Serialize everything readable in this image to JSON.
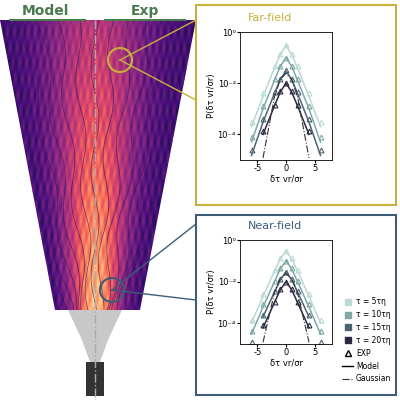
{
  "panel_labels": {
    "left": "Model",
    "right": "Exp"
  },
  "legend_entries": {
    "exp": {
      "name": "EXP",
      "marker": "triangle"
    },
    "model": {
      "name": "Model",
      "line_style": "solid"
    }
  },
  "chart_data": [
    {
      "type": "line",
      "title": "Far-field",
      "frame_color": "#c9b03c",
      "xlabel": "δτ vr/σr",
      "ylabel": "P(δτ vr/σr)",
      "log": "y",
      "xlim": [
        -8,
        8
      ],
      "ylim": [
        1e-05,
        1
      ],
      "xticks": [
        -5,
        0,
        5
      ],
      "yticks": [
        {
          "value": 1,
          "label": "10⁰"
        },
        {
          "value": 0.01,
          "label": "10⁻²"
        },
        {
          "value": 0.0001,
          "label": "10⁻⁴"
        }
      ],
      "x": [
        -6,
        -4,
        -2,
        -1,
        0,
        1,
        2,
        4,
        6
      ],
      "series": [
        {
          "name": "τ = 5τη",
          "color": "#b9d9d6",
          "exp": [
            0.0003,
            0.004,
            0.045,
            0.14,
            0.32,
            0.14,
            0.045,
            0.004,
            0.0003
          ],
          "model": [
            0.0002,
            0.003,
            0.04,
            0.13,
            0.3,
            0.13,
            0.04,
            0.003,
            0.0002
          ]
        },
        {
          "name": "τ = 10τη",
          "color": "#7fa7a8",
          "exp": [
            8e-05,
            0.0013,
            0.014,
            0.048,
            0.1,
            0.048,
            0.014,
            0.0013,
            8e-05
          ],
          "model": [
            5e-05,
            0.001,
            0.013,
            0.045,
            0.1,
            0.045,
            0.013,
            0.001,
            5e-05
          ]
        },
        {
          "name": "τ = 15τη",
          "color": "#4b6474",
          "exp": [
            2.5e-05,
            0.0004,
            0.0045,
            0.015,
            0.032,
            0.015,
            0.0045,
            0.0004,
            2.5e-05
          ],
          "model": [
            1.5e-05,
            0.0003,
            0.004,
            0.014,
            0.03,
            0.014,
            0.004,
            0.0003,
            1.5e-05
          ]
        },
        {
          "name": "τ = 20τη",
          "color": "#2b2942",
          "exp": [
            null,
            0.00013,
            0.0014,
            0.0048,
            0.01,
            0.0048,
            0.0014,
            0.00013,
            null
          ],
          "model": [
            null,
            0.0001,
            0.0013,
            0.0045,
            0.01,
            0.0045,
            0.0013,
            0.0001,
            null
          ]
        }
      ],
      "gaussian": {
        "name": "Gaussian",
        "color": "#333333",
        "line_style": "dashdot",
        "values": [
          null,
          1.2e-05,
          0.003,
          0.014,
          0.024,
          0.014,
          0.003,
          1.2e-05,
          null
        ]
      }
    },
    {
      "type": "line",
      "title": "Near-field",
      "frame_color": "#3d5d7a",
      "xlabel": "δτ vr/σr",
      "ylabel": "P(δτ vr/σr)",
      "log": "y",
      "xlim": [
        -8,
        8
      ],
      "ylim": [
        1e-05,
        1
      ],
      "xticks": [
        -5,
        0,
        5
      ],
      "yticks": [
        {
          "value": 1,
          "label": "10⁰"
        },
        {
          "value": 0.01,
          "label": "10⁻²"
        },
        {
          "value": 0.0001,
          "label": "10⁻⁴"
        }
      ],
      "x": [
        -6,
        -4,
        -2,
        -1,
        0,
        1,
        2,
        4,
        6
      ],
      "series": [
        {
          "name": "τ = 5τη",
          "color": "#b9d9d6",
          "exp": [
            0.00015,
            0.0025,
            0.035,
            0.13,
            0.3,
            0.13,
            0.035,
            0.0025,
            0.00015
          ],
          "model": [
            0.0001,
            0.002,
            0.032,
            0.12,
            0.3,
            0.12,
            0.032,
            0.002,
            0.0001
          ]
        },
        {
          "name": "τ = 10τη",
          "color": "#7fa7a8",
          "exp": [
            4e-05,
            0.0008,
            0.011,
            0.043,
            0.1,
            0.043,
            0.011,
            0.0008,
            4e-05
          ],
          "model": [
            3e-05,
            0.0006,
            0.01,
            0.04,
            0.1,
            0.04,
            0.01,
            0.0006,
            3e-05
          ]
        },
        {
          "name": "τ = 15τη",
          "color": "#4b6474",
          "exp": [
            1.2e-05,
            0.00025,
            0.0035,
            0.013,
            0.03,
            0.013,
            0.0035,
            0.00025,
            1.2e-05
          ],
          "model": [
            null,
            0.0002,
            0.0032,
            0.012,
            0.03,
            0.012,
            0.0032,
            0.0002,
            null
          ]
        },
        {
          "name": "τ = 20τη",
          "color": "#2b2942",
          "exp": [
            null,
            8e-05,
            0.0011,
            0.0043,
            0.01,
            0.0043,
            0.0011,
            8e-05,
            null
          ],
          "model": [
            null,
            6e-05,
            0.001,
            0.004,
            0.01,
            0.004,
            0.001,
            6e-05,
            null
          ]
        }
      ],
      "gaussian": {
        "name": "Gaussian",
        "color": "#333333",
        "line_style": "dashdot",
        "values": [
          null,
          1.2e-05,
          0.003,
          0.014,
          0.024,
          0.014,
          0.003,
          1.2e-05,
          null
        ]
      }
    }
  ]
}
